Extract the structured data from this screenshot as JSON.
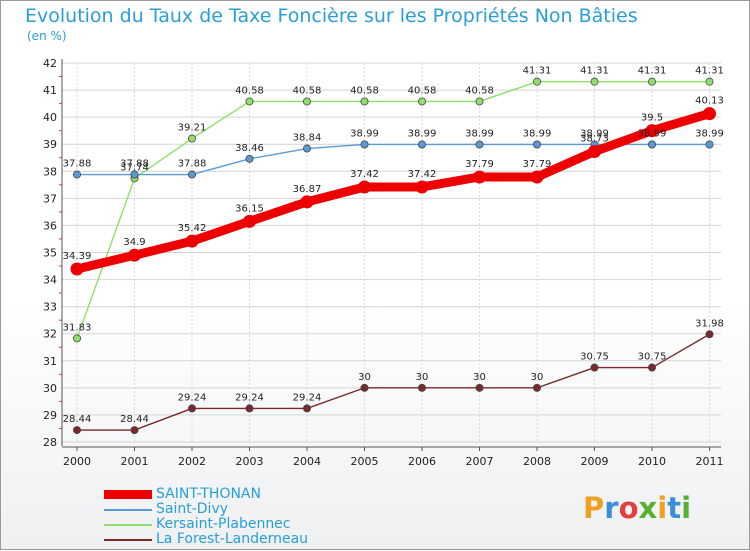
{
  "chart_data": {
    "type": "line",
    "title": "Evolution du Taux de Taxe Foncière sur les Propriétés Non Bâties",
    "ylabel": "(en %)",
    "xlabel": "",
    "x": [
      2000,
      2001,
      2002,
      2003,
      2004,
      2005,
      2006,
      2007,
      2008,
      2009,
      2010,
      2011
    ],
    "x_tick_labels": [
      "2000",
      "2001",
      "2002",
      "2003",
      "2004",
      "2005",
      "2006",
      "2007",
      "2008",
      "2009",
      "2010",
      "2011"
    ],
    "ylim": [
      28,
      42
    ],
    "y_tick_labels": [
      "28",
      "29",
      "30",
      "31",
      "32",
      "33",
      "34",
      "35",
      "36",
      "37",
      "38",
      "39",
      "40",
      "41",
      "42"
    ],
    "grid": true,
    "legend_position": "bottom-left",
    "series": [
      {
        "name": "SAINT-THONAN",
        "color": "#ee0000",
        "values": [
          34.39,
          34.9,
          35.42,
          36.15,
          36.87,
          37.42,
          37.42,
          37.79,
          37.79,
          38.73,
          39.5,
          40.13
        ],
        "labels": [
          "34.39",
          "34.9",
          "35.42",
          "36.15",
          "36.87",
          "37.42",
          "37.42",
          "37.79",
          "37.79",
          "38.73",
          "39.5",
          "40.13"
        ]
      },
      {
        "name": "Saint-Divy",
        "color": "#5b9bd5",
        "values": [
          37.88,
          37.88,
          37.88,
          38.46,
          38.84,
          38.99,
          38.99,
          38.99,
          38.99,
          38.99,
          38.99,
          38.99
        ],
        "labels": [
          "37.88",
          "37.88",
          "37.88",
          "38.46",
          "38.84",
          "38.99",
          "38.99",
          "38.99",
          "38.99",
          "38.99",
          "38.99",
          "38.99"
        ]
      },
      {
        "name": "Kersaint-Plabennec",
        "color": "#8ee06a",
        "values": [
          31.83,
          37.74,
          39.21,
          40.58,
          40.58,
          40.58,
          40.58,
          40.58,
          41.31,
          41.31,
          41.31,
          41.31
        ],
        "labels": [
          "31.83",
          "37.74",
          "39.21",
          "40.58",
          "40.58",
          "40.58",
          "40.58",
          "40.58",
          "41.31",
          "41.31",
          "41.31",
          "41.31"
        ]
      },
      {
        "name": "La Forest-Landerneau",
        "color": "#7a2a2a",
        "values": [
          28.44,
          28.44,
          29.24,
          29.24,
          29.24,
          30,
          30,
          30,
          30,
          30.75,
          30.75,
          31.98
        ],
        "labels": [
          "28.44",
          "28.44",
          "29.24",
          "29.24",
          "29.24",
          "30",
          "30",
          "30",
          "30",
          "30.75",
          "30.75",
          "31.98"
        ]
      }
    ]
  },
  "logo": {
    "letters": [
      "P",
      "r",
      "o",
      "x",
      "i",
      "t",
      "i"
    ],
    "colors": [
      "#f0a020",
      "#3a8fd6",
      "#e04040",
      "#58b030",
      "#f0a020",
      "#3a8fd6",
      "#58b030"
    ]
  }
}
